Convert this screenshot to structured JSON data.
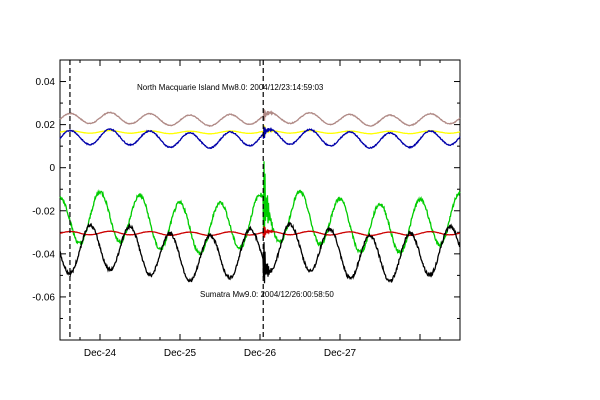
{
  "chart_data": {
    "type": "line",
    "title": "",
    "xlabel": "",
    "ylabel": "",
    "xlim_days": [
      "2004-12-23T12:00",
      "2004-12-28T12:00"
    ],
    "ylim": [
      -0.08,
      0.05
    ],
    "x_ticks": [
      "Dec-24",
      "Dec-25",
      "Dec-26",
      "Dec-27"
    ],
    "y_ticks": [
      "0.04",
      "0.02",
      "0",
      "-0.02",
      "-0.04",
      "-0.06"
    ],
    "y_tick_values": [
      0.04,
      0.02,
      0,
      -0.02,
      -0.04,
      -0.06
    ],
    "grid": false,
    "legend": "none",
    "event_markers": [
      {
        "time": "2004-12-23T14:59",
        "label": "North Macquarie Island Mw8.0: 2004/12/23:14:59:03"
      },
      {
        "time": "2004-12-26T00:58",
        "label": "Sumatra Mw9.0: 2004/12/26:00:58:50"
      }
    ],
    "series": [
      {
        "color": "#b08a86",
        "baseline": 0.0225,
        "amplitude": 0.0025,
        "period_days": 0.5,
        "phase": 0.0
      },
      {
        "color": "#ffff00",
        "baseline": 0.0165,
        "amplitude": 0.0006,
        "period_days": 0.5,
        "phase": 0.0
      },
      {
        "color": "#0000aa",
        "baseline": 0.0135,
        "amplitude": 0.0035,
        "period_days": 0.5,
        "phase": 0.0
      },
      {
        "color": "#00cc00",
        "baseline": -0.0255,
        "amplitude": 0.0115,
        "period_days": 0.5,
        "phase": 1.57
      },
      {
        "color": "#cc0000",
        "baseline": -0.0305,
        "amplitude": 0.0008,
        "period_days": 0.5,
        "phase": 0.0
      },
      {
        "color": "#000000",
        "baseline": -0.0395,
        "amplitude": 0.0105,
        "period_days": 0.5,
        "phase": 3.14
      }
    ]
  }
}
